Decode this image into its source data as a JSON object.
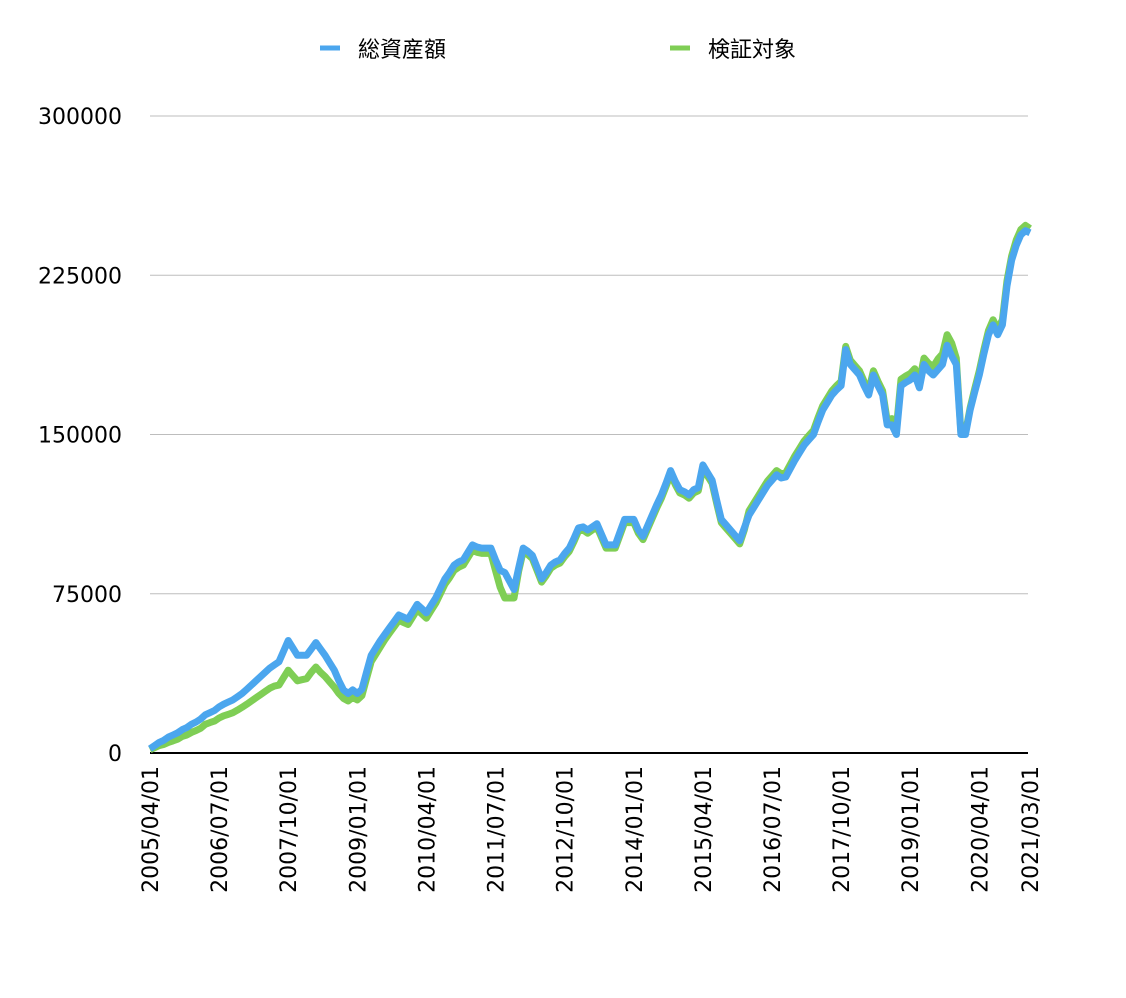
{
  "chart_data": {
    "type": "line",
    "categories": [
      "2005/04/01",
      null,
      null,
      null,
      null,
      null,
      null,
      null,
      null,
      null,
      null,
      null,
      null,
      null,
      null,
      "2006/07/01",
      null,
      null,
      null,
      null,
      null,
      null,
      null,
      null,
      null,
      null,
      null,
      null,
      null,
      null,
      "2007/10/01",
      null,
      null,
      null,
      null,
      null,
      null,
      null,
      null,
      null,
      null,
      null,
      null,
      null,
      null,
      "2009/01/01",
      null,
      null,
      null,
      null,
      null,
      null,
      null,
      null,
      null,
      null,
      null,
      null,
      null,
      null,
      "2010/04/01",
      null,
      null,
      null,
      null,
      null,
      null,
      null,
      null,
      null,
      null,
      null,
      null,
      null,
      null,
      "2011/07/01",
      null,
      null,
      null,
      null,
      null,
      null,
      null,
      null,
      null,
      null,
      null,
      null,
      null,
      null,
      "2012/10/01",
      null,
      null,
      null,
      null,
      null,
      null,
      null,
      null,
      null,
      null,
      null,
      null,
      null,
      null,
      "2014/01/01",
      null,
      null,
      null,
      null,
      null,
      null,
      null,
      null,
      null,
      null,
      null,
      null,
      null,
      null,
      "2015/04/01",
      null,
      null,
      null,
      null,
      null,
      null,
      null,
      null,
      null,
      null,
      null,
      null,
      null,
      null,
      "2016/07/01",
      null,
      null,
      null,
      null,
      null,
      null,
      null,
      null,
      null,
      null,
      null,
      null,
      null,
      null,
      "2017/10/01",
      null,
      null,
      null,
      null,
      null,
      null,
      null,
      null,
      null,
      null,
      null,
      null,
      null,
      null,
      "2019/01/01",
      null,
      null,
      null,
      null,
      null,
      null,
      null,
      null,
      null,
      null,
      null,
      null,
      null,
      null,
      "2020/04/01",
      null,
      null,
      null,
      null,
      null,
      null,
      null,
      null,
      null,
      null,
      "2021/03/01"
    ],
    "series": [
      {
        "name": "総資産額",
        "color": "#4ba6ee",
        "values": [
          2000,
          3500,
          5000,
          6000,
          7500,
          8500,
          9500,
          11000,
          12000,
          13500,
          14600,
          16000,
          18000,
          19000,
          20000,
          21700,
          23000,
          24000,
          25000,
          26500,
          28000,
          30000,
          32000,
          34000,
          36000,
          38000,
          40000,
          41500,
          43000,
          48000,
          53000,
          49500,
          46000,
          46000,
          46000,
          49000,
          52000,
          49000,
          46000,
          42500,
          39000,
          34000,
          29700,
          28000,
          29700,
          28000,
          30000,
          38000,
          46000,
          49500,
          53000,
          56000,
          59000,
          62000,
          65000,
          64000,
          63000,
          66500,
          70000,
          68000,
          66000,
          69500,
          73000,
          77500,
          82000,
          85000,
          88500,
          90000,
          91000,
          94500,
          98000,
          97000,
          96500,
          96500,
          96500,
          91000,
          86000,
          85000,
          81000,
          77000,
          87000,
          96500,
          95000,
          93000,
          87500,
          82000,
          85000,
          88500,
          90000,
          91000,
          94000,
          96500,
          101000,
          106000,
          106500,
          105000,
          106500,
          108000,
          103000,
          98000,
          98000,
          98000,
          104000,
          110000,
          110000,
          110000,
          105000,
          102000,
          107000,
          112000,
          117000,
          121500,
          127000,
          133000,
          128000,
          124000,
          123000,
          121500,
          124000,
          125000,
          135700,
          132000,
          128500,
          119000,
          110000,
          107500,
          105000,
          102500,
          100000,
          106000,
          112000,
          115500,
          119000,
          122500,
          126000,
          128500,
          131000,
          129500,
          130000,
          134000,
          138000,
          141500,
          145000,
          147500,
          150000,
          156000,
          161500,
          165000,
          168600,
          171000,
          173000,
          190000,
          183000,
          180500,
          178000,
          173000,
          168600,
          178000,
          173000,
          168600,
          154500,
          154500,
          150000,
          173000,
          174500,
          175700,
          178000,
          172000,
          183000,
          180000,
          178000,
          180500,
          183000,
          192000,
          187000,
          183000,
          150000,
          150000,
          161500,
          170000,
          178000,
          188000,
          197000,
          201600,
          197000,
          201600,
          220000,
          232000,
          239000,
          244000,
          246000,
          245000
        ]
      },
      {
        "name": "検証対象",
        "color": "#7fce55",
        "values": [
          1500,
          2500,
          3500,
          4000,
          5000,
          5700,
          6500,
          7800,
          8500,
          9700,
          10600,
          11700,
          13500,
          14300,
          15000,
          16500,
          17500,
          18200,
          19000,
          20200,
          21500,
          23000,
          24500,
          26000,
          27500,
          29000,
          30500,
          31500,
          32000,
          35500,
          39000,
          36500,
          34000,
          34500,
          35000,
          38000,
          40500,
          38000,
          36000,
          33500,
          31000,
          28000,
          25700,
          24500,
          26200,
          25000,
          27000,
          35000,
          43000,
          46500,
          50000,
          53500,
          56500,
          59500,
          62500,
          61500,
          60500,
          64000,
          67500,
          65500,
          63500,
          67000,
          70500,
          75000,
          79500,
          82500,
          86000,
          87500,
          88500,
          92000,
          95500,
          94500,
          94000,
          94000,
          94000,
          86000,
          78000,
          73000,
          73000,
          73000,
          85500,
          95000,
          93500,
          91500,
          86000,
          80500,
          83500,
          87000,
          88500,
          89500,
          92500,
          95000,
          99500,
          104500,
          105000,
          103500,
          105000,
          106500,
          101500,
          96500,
          96500,
          96500,
          102500,
          108500,
          108500,
          108500,
          103500,
          100500,
          105500,
          110500,
          115500,
          120000,
          125500,
          131500,
          126500,
          122500,
          121500,
          120000,
          122500,
          123500,
          134200,
          130500,
          127000,
          117500,
          108500,
          106000,
          103500,
          101000,
          98500,
          105000,
          114000,
          117500,
          121000,
          124500,
          128000,
          130500,
          133000,
          131500,
          132000,
          136000,
          140000,
          143500,
          147000,
          149500,
          152000,
          158000,
          163500,
          167000,
          170600,
          173000,
          175000,
          191500,
          185000,
          182500,
          180000,
          175000,
          170600,
          180000,
          175000,
          170600,
          156500,
          157500,
          153000,
          176000,
          177500,
          178700,
          181000,
          175000,
          186000,
          183500,
          182000,
          185500,
          188000,
          197000,
          193000,
          186000,
          151000,
          151000,
          162500,
          171500,
          180000,
          190000,
          199000,
          204000,
          199500,
          204000,
          222500,
          234000,
          241500,
          246500,
          248500,
          247000
        ]
      }
    ],
    "ylim": [
      0,
      300000
    ],
    "yticks": [
      0,
      75000,
      150000,
      225000,
      300000
    ],
    "grid": true,
    "legend": "top"
  }
}
